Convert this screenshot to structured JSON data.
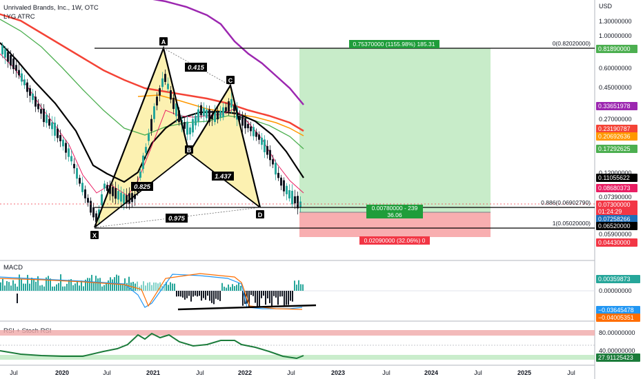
{
  "header": {
    "symbol_line": "Unrivaled Brands, Inc., 1W, OTC",
    "indicator_line": "LYG ATRC"
  },
  "axis": {
    "currency": "USD",
    "price_ticks": [
      "1.30000000",
      "1.00000000",
      "0.60000000",
      "0.45000000",
      "0.27000000",
      "0.12000000",
      "0.07390000",
      "0.05900000"
    ],
    "macd_ticks": [
      "0.00000000"
    ],
    "rsi_ticks": [
      "80.00000000",
      "40.00000000"
    ],
    "time_ticks": [
      "Jul",
      "2020",
      "Jul",
      "2021",
      "Jul",
      "2022",
      "Jul",
      "2023",
      "Jul",
      "2024",
      "Jul",
      "2025",
      "Jul"
    ]
  },
  "price_badges": [
    {
      "text": "0.81890000",
      "bg": "#4caf50",
      "fg": "#ffffff"
    },
    {
      "text": "0.33651978",
      "bg": "#9c27b0",
      "fg": "#ffffff"
    },
    {
      "text": "0.23190787",
      "bg": "#f44336",
      "fg": "#ffffff"
    },
    {
      "text": "0.20692636",
      "bg": "#ff9800",
      "fg": "#ffffff"
    },
    {
      "text": "0.17292625",
      "bg": "#4caf50",
      "fg": "#ffffff"
    },
    {
      "text": "0.11055622",
      "bg": "#000000",
      "fg": "#ffffff"
    },
    {
      "text": "0.08680373",
      "bg": "#e91e63",
      "fg": "#ffffff"
    },
    {
      "text": "0.07300000",
      "bg": "#f23645",
      "fg": "#ffffff"
    },
    {
      "text": "01:24:29",
      "bg": "#f23645",
      "fg": "#ffffff"
    },
    {
      "text": "0.07258266",
      "bg": "#1e6fb8",
      "fg": "#ffffff"
    },
    {
      "text": "0.06520000",
      "bg": "#000000",
      "fg": "#ffffff"
    },
    {
      "text": "0.04430000",
      "bg": "#f23645",
      "fg": "#ffffff"
    }
  ],
  "macd_badges": [
    {
      "text": "0.00359873",
      "bg": "#26a69a",
      "fg": "#ffffff"
    },
    {
      "text": "−0.03645478",
      "bg": "#2196f3",
      "fg": "#ffffff"
    },
    {
      "text": "−0.04005351",
      "bg": "#ff6d00",
      "fg": "#ffffff"
    }
  ],
  "rsi_badge": {
    "text": "27.91125423",
    "bg": "#1b7b3a",
    "fg": "#ffffff"
  },
  "pane_labels": {
    "macd": "MACD",
    "rsi": "RSI + Stoch RSI"
  },
  "fib_labels": {
    "top": "0(0.82020000)",
    "mid": "0.886(0.06902790)",
    "bottom": "1(0.05020000)"
  },
  "pattern": {
    "points": [
      "X",
      "A",
      "B",
      "C",
      "D"
    ],
    "ratios": {
      "xa_b": "0.415",
      "xab": "0.825",
      "bc": "1.437",
      "xd": "0.975"
    }
  },
  "position": {
    "profit_label": "0.75370000 (1155.98%) 185.31",
    "entry_label_1": "0.00780000 - 239",
    "entry_label_2": "36.06",
    "loss_label": "0.02090000 (32.06%) 0"
  },
  "chart_data": {
    "type": "line",
    "title": "Unrivaled Brands, Inc., 1W, OTC",
    "price_scale": "log",
    "ylim": [
      0.035,
      1.6
    ],
    "harmonic_pattern": [
      {
        "label": "X",
        "date": "2020-05",
        "price": 0.0595
      },
      {
        "label": "A",
        "date": "2021-02",
        "price": 0.82
      },
      {
        "label": "B",
        "date": "2021-05",
        "price": 0.175
      },
      {
        "label": "C",
        "date": "2021-11",
        "price": 0.36
      },
      {
        "label": "D",
        "date": "2022-06",
        "price": 0.069
      }
    ],
    "fib_levels": [
      {
        "ratio": "0",
        "price": 0.8202
      },
      {
        "ratio": "0.886",
        "price": 0.0690279
      },
      {
        "ratio": "1",
        "price": 0.0502
      }
    ],
    "long_position": {
      "entry": 0.0652,
      "target": 0.8189,
      "stop": 0.0443
    },
    "last_close": 0.073,
    "moving_average_last_values": [
      {
        "color": "#9c27b0",
        "value": 0.33651978
      },
      {
        "color": "#f44336",
        "value": 0.23190787
      },
      {
        "color": "#ff9800",
        "value": 0.20692636
      },
      {
        "color": "#4caf50",
        "value": 0.17292625
      },
      {
        "color": "#000000",
        "value": 0.11055622
      },
      {
        "color": "#e91e63",
        "value": 0.08680373
      }
    ],
    "macd": {
      "histogram": 0.00359873,
      "macd": -0.03645478,
      "signal": -0.04005351
    },
    "rsi": {
      "value": 27.91125423,
      "bands": [
        80,
        40
      ]
    }
  }
}
